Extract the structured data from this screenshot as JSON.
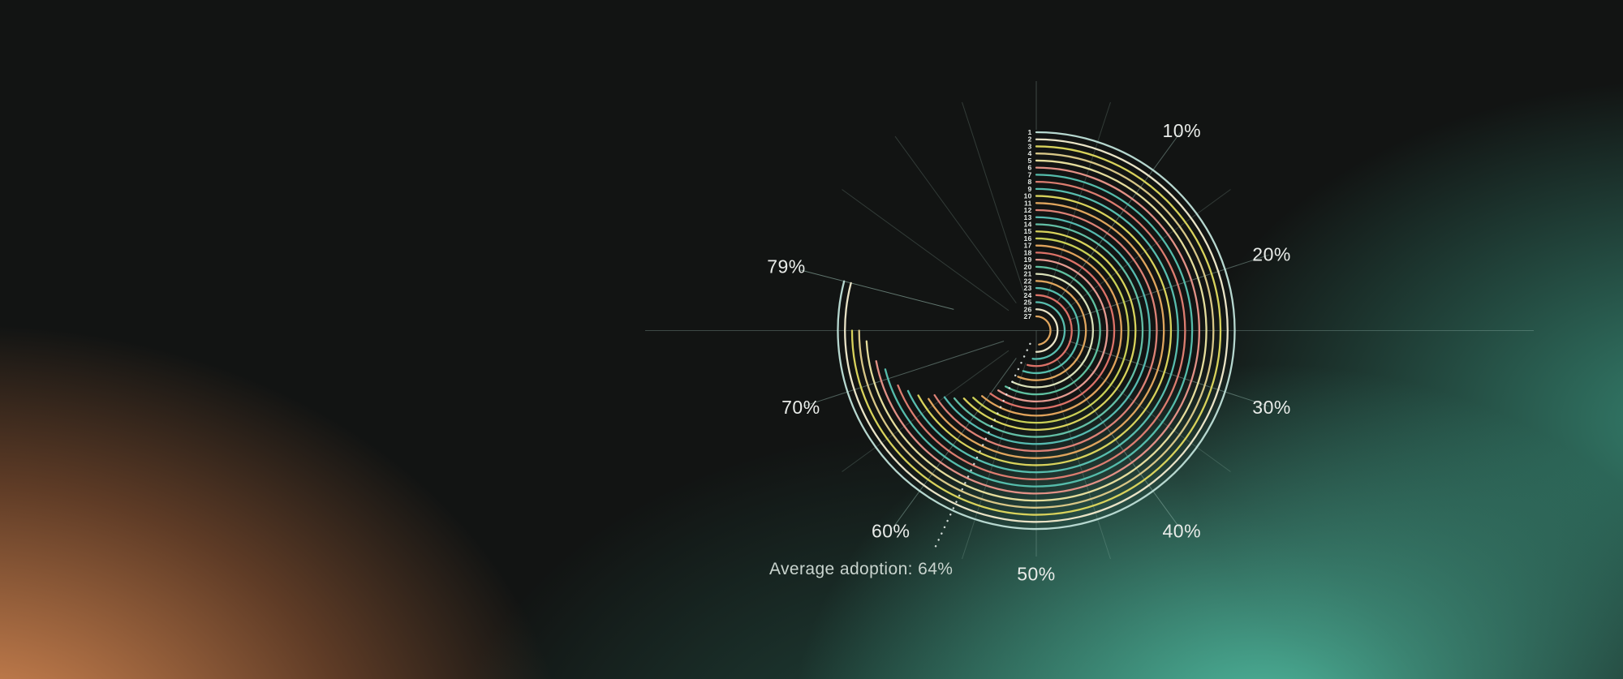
{
  "chart_data": {
    "type": "radial-bar",
    "description": "Concentric radial progress arcs for 27 numbered rows, 0% at top sweeping clockwise, full circle = 100%",
    "unit": "%",
    "angular_scale": {
      "full_circle_percent": 100,
      "zero_at_top": true,
      "clockwise": true
    },
    "axis_ticks": [
      {
        "value": 10,
        "label": "10%"
      },
      {
        "value": 20,
        "label": "20%"
      },
      {
        "value": 30,
        "label": "30%"
      },
      {
        "value": 40,
        "label": "40%"
      },
      {
        "value": 50,
        "label": "50%"
      },
      {
        "value": 60,
        "label": "60%"
      },
      {
        "value": 70,
        "label": "70%"
      }
    ],
    "minor_ticks_percent": [
      5,
      15,
      35,
      45,
      55,
      65,
      85,
      90,
      95
    ],
    "max_value_marker": {
      "value": 79,
      "label": "79%"
    },
    "average_marker": {
      "value": 64,
      "label": "Average adoption: 64%"
    },
    "series": [
      {
        "row": "1",
        "value": 79,
        "color": "#b6d7cf"
      },
      {
        "row": "2",
        "value": 79,
        "color": "#e9e3c6"
      },
      {
        "row": "3",
        "value": 75,
        "color": "#d8d25c"
      },
      {
        "row": "4",
        "value": 75,
        "color": "#d7c687"
      },
      {
        "row": "5",
        "value": 74,
        "color": "#e4dc9c"
      },
      {
        "row": "6",
        "value": 72,
        "color": "#e29186"
      },
      {
        "row": "7",
        "value": 71,
        "color": "#55bcab"
      },
      {
        "row": "8",
        "value": 69,
        "color": "#dc7d70"
      },
      {
        "row": "9",
        "value": 68,
        "color": "#58bdae"
      },
      {
        "row": "10",
        "value": 67,
        "color": "#d8d25c"
      },
      {
        "row": "11",
        "value": 66,
        "color": "#dfa55e"
      },
      {
        "row": "12",
        "value": 66,
        "color": "#dd8276"
      },
      {
        "row": "13",
        "value": 65,
        "color": "#56bab0"
      },
      {
        "row": "14",
        "value": 64,
        "color": "#63bfa6"
      },
      {
        "row": "15",
        "value": 63,
        "color": "#d8d25c"
      },
      {
        "row": "16",
        "value": 62,
        "color": "#c9cf56"
      },
      {
        "row": "17",
        "value": 61,
        "color": "#e0a35c"
      },
      {
        "row": "18",
        "value": 60,
        "color": "#dc7268"
      },
      {
        "row": "19",
        "value": 59,
        "color": "#e59a90"
      },
      {
        "row": "20",
        "value": 58,
        "color": "#5fc0a0"
      },
      {
        "row": "21",
        "value": 57,
        "color": "#d9e0b8"
      },
      {
        "row": "22",
        "value": 56,
        "color": "#dfa55e"
      },
      {
        "row": "23",
        "value": 55,
        "color": "#55bcab"
      },
      {
        "row": "24",
        "value": 54,
        "color": "#dc7268"
      },
      {
        "row": "25",
        "value": 52,
        "color": "#58bdae"
      },
      {
        "row": "26",
        "value": 50,
        "color": "#e9e3c6"
      },
      {
        "row": "27",
        "value": 47,
        "color": "#dfa55e"
      }
    ]
  },
  "colors": {
    "background_base": "#121413",
    "teal_glow": "#4fc3a6",
    "orange_glow": "#ef9a5e",
    "gridline": "#a3c8bc",
    "tick_label_text": "#e9ece9",
    "row_label_text": "#e4e9e5",
    "average_text": "#c9d4ce"
  }
}
